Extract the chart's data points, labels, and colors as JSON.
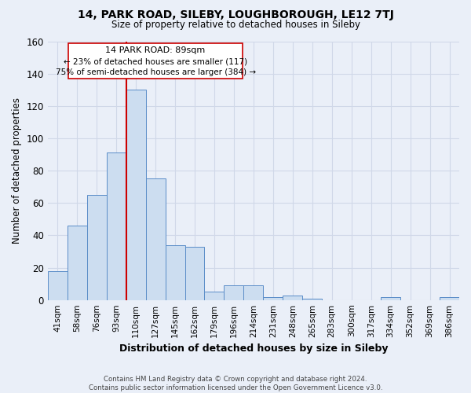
{
  "title_line1": "14, PARK ROAD, SILEBY, LOUGHBOROUGH, LE12 7TJ",
  "title_line2": "Size of property relative to detached houses in Sileby",
  "xlabel": "Distribution of detached houses by size in Sileby",
  "ylabel": "Number of detached properties",
  "bar_labels": [
    "41sqm",
    "58sqm",
    "76sqm",
    "93sqm",
    "110sqm",
    "127sqm",
    "145sqm",
    "162sqm",
    "179sqm",
    "196sqm",
    "214sqm",
    "231sqm",
    "248sqm",
    "265sqm",
    "283sqm",
    "300sqm",
    "317sqm",
    "334sqm",
    "352sqm",
    "369sqm",
    "386sqm"
  ],
  "bar_values": [
    18,
    46,
    65,
    91,
    130,
    75,
    34,
    33,
    5,
    9,
    9,
    2,
    3,
    1,
    0,
    0,
    0,
    2,
    0,
    0,
    2
  ],
  "bar_color": "#ccddf0",
  "bar_edge_color": "#5b8dc8",
  "property_label": "14 PARK ROAD: 89sqm",
  "annotation_line1": "← 23% of detached houses are smaller (117)",
  "annotation_line2": "75% of semi-detached houses are larger (384) →",
  "vline_color": "#cc0000",
  "vline_position": 3.5,
  "box_color": "#cc0000",
  "ylim": [
    0,
    160
  ],
  "yticks": [
    0,
    20,
    40,
    60,
    80,
    100,
    120,
    140,
    160
  ],
  "grid_color": "#d0d8e8",
  "background_color": "#eaeff8",
  "footer_line1": "Contains HM Land Registry data © Crown copyright and database right 2024.",
  "footer_line2": "Contains public sector information licensed under the Open Government Licence v3.0."
}
